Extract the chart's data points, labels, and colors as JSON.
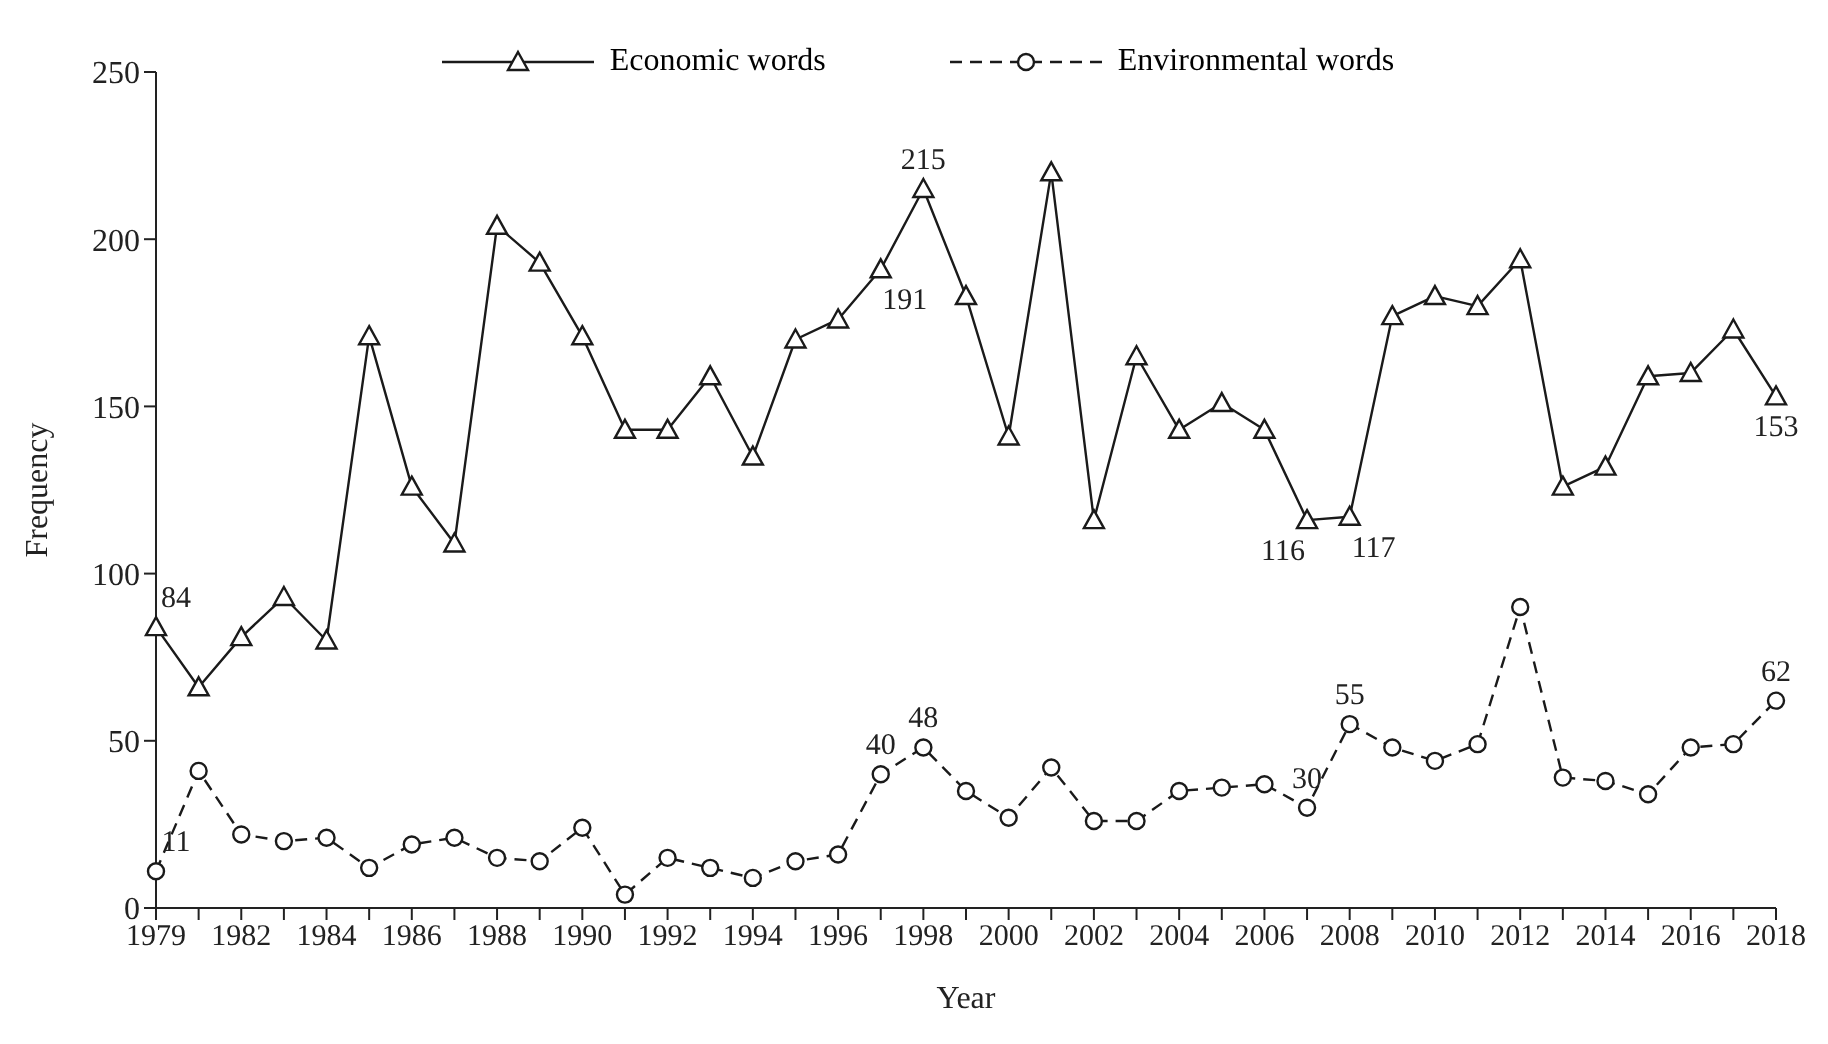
{
  "chart_data": {
    "type": "line",
    "xlabel": "Year",
    "ylabel": "Frequency",
    "categories": [
      "1979",
      null,
      "1982",
      null,
      "1984",
      null,
      "1986",
      null,
      "1988",
      null,
      "1990",
      null,
      "1992",
      null,
      "1994",
      null,
      "1996",
      null,
      "1998",
      null,
      "2000",
      null,
      "2002",
      null,
      "2004",
      null,
      "2006",
      null,
      "2008",
      null,
      "2010",
      null,
      "2012",
      null,
      "2014",
      null,
      "2016",
      null,
      "2018"
    ],
    "series": [
      {
        "name": "Economic words",
        "color": "#1a1a1a",
        "marker": "triangle",
        "line_style": "solid",
        "values": [
          84,
          66,
          81,
          93,
          80,
          171,
          126,
          109,
          204,
          193,
          171,
          143,
          143,
          159,
          135,
          170,
          176,
          191,
          215,
          183,
          141,
          220,
          116,
          165,
          143,
          151,
          143,
          116,
          117,
          177,
          183,
          180,
          194,
          126,
          132,
          159,
          160,
          173,
          153
        ],
        "value_labels": [
          "84",
          null,
          null,
          null,
          null,
          null,
          null,
          null,
          null,
          null,
          null,
          null,
          null,
          null,
          null,
          null,
          null,
          "191",
          "215",
          null,
          null,
          null,
          null,
          null,
          null,
          null,
          null,
          "116",
          "117",
          null,
          null,
          null,
          null,
          null,
          null,
          null,
          null,
          null,
          "153"
        ]
      },
      {
        "name": "Environmental words",
        "color": "#1a1a1a",
        "marker": "circle",
        "line_style": "dashed",
        "values": [
          11,
          41,
          22,
          20,
          21,
          12,
          19,
          21,
          15,
          14,
          24,
          4,
          15,
          12,
          9,
          14,
          16,
          40,
          48,
          35,
          27,
          42,
          26,
          26,
          35,
          36,
          37,
          30,
          55,
          48,
          44,
          49,
          90,
          39,
          38,
          34,
          48,
          49,
          62
        ],
        "value_labels": [
          "11",
          null,
          null,
          null,
          null,
          null,
          null,
          null,
          null,
          null,
          null,
          null,
          null,
          null,
          null,
          null,
          null,
          "40",
          "48",
          null,
          null,
          null,
          null,
          null,
          null,
          null,
          null,
          "30",
          "55",
          null,
          null,
          null,
          null,
          null,
          null,
          null,
          null,
          null,
          "62"
        ]
      }
    ],
    "ylim": [
      0,
      250
    ],
    "yticks": [
      0,
      50,
      100,
      150,
      200,
      250
    ],
    "grid": false,
    "legend": "top"
  }
}
